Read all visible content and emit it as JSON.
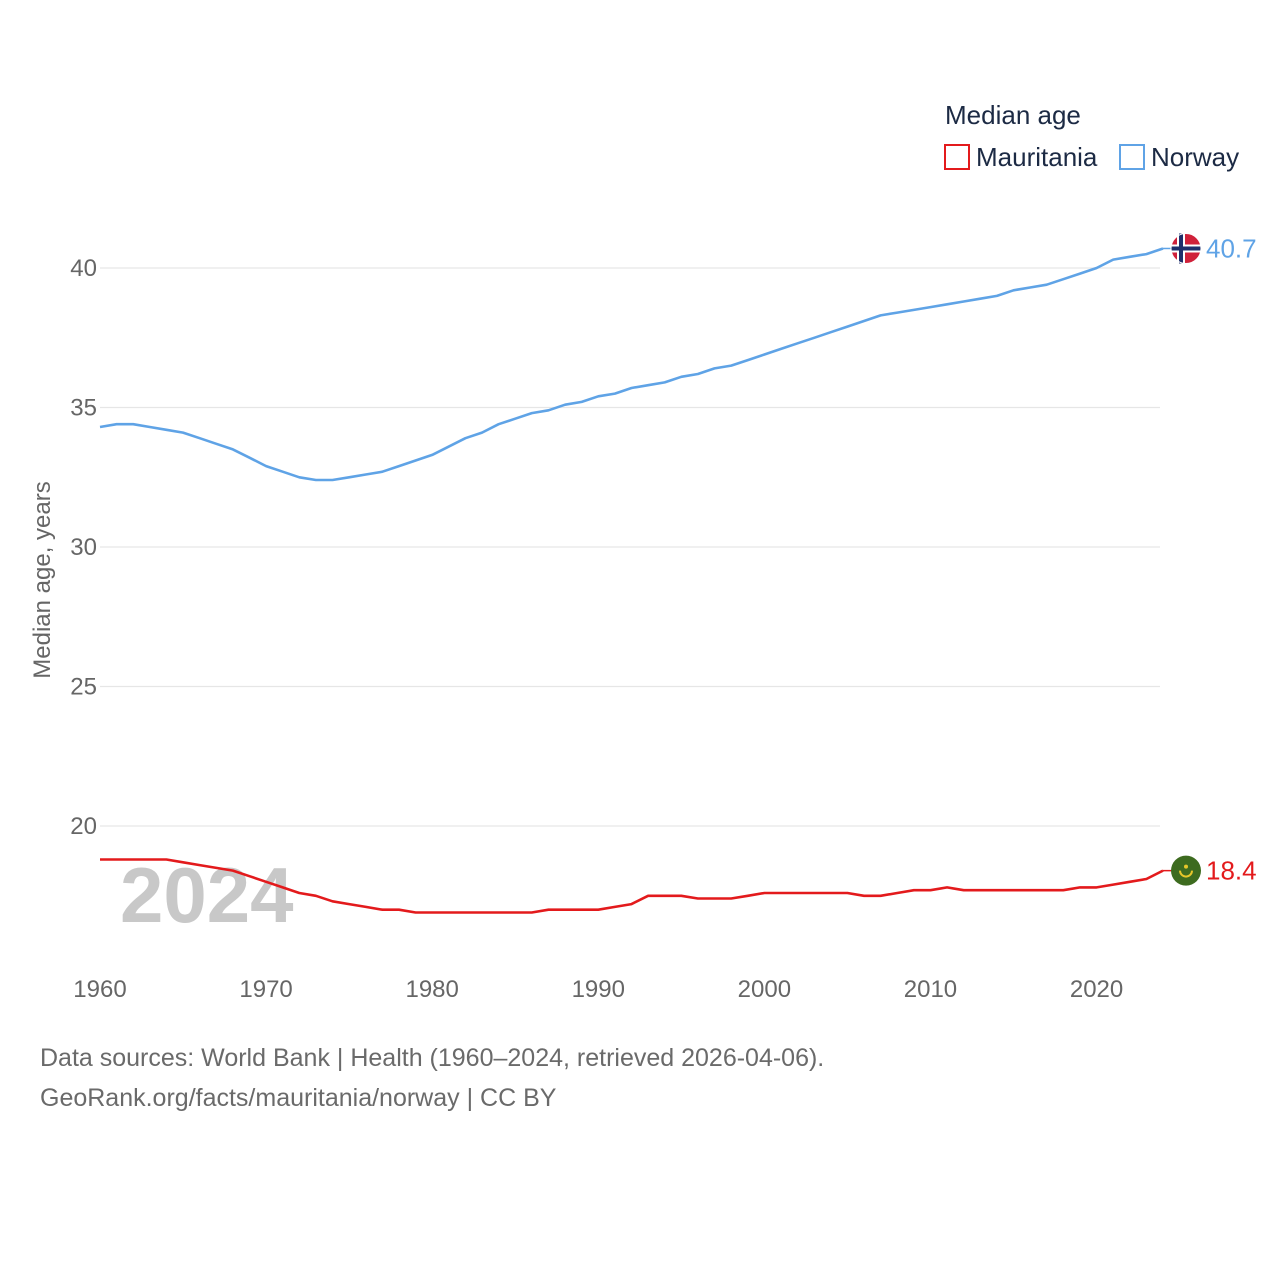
{
  "chart_data": {
    "type": "line",
    "title": "Median age",
    "ylabel": "Median age, years",
    "xlabel": "",
    "xlim": [
      1960,
      2024
    ],
    "ylim": [
      15,
      42
    ],
    "yticks": [
      20,
      25,
      30,
      35,
      40
    ],
    "xticks": [
      1960,
      1970,
      1980,
      1990,
      2000,
      2010,
      2020
    ],
    "grid": true,
    "legend_position": "top-right",
    "current_year": "2024",
    "series": [
      {
        "name": "Mauritania",
        "color": "#e31a1c",
        "flag_icon": "mauritania-flag-icon",
        "end_label": "18.4",
        "x": [
          1960,
          1961,
          1962,
          1963,
          1964,
          1965,
          1966,
          1967,
          1968,
          1969,
          1970,
          1971,
          1972,
          1973,
          1974,
          1975,
          1976,
          1977,
          1978,
          1979,
          1980,
          1981,
          1982,
          1983,
          1984,
          1985,
          1986,
          1987,
          1988,
          1989,
          1990,
          1991,
          1992,
          1993,
          1994,
          1995,
          1996,
          1997,
          1998,
          1999,
          2000,
          2001,
          2002,
          2003,
          2004,
          2005,
          2006,
          2007,
          2008,
          2009,
          2010,
          2011,
          2012,
          2013,
          2014,
          2015,
          2016,
          2017,
          2018,
          2019,
          2020,
          2021,
          2022,
          2023,
          2024
        ],
        "values": [
          18.8,
          18.8,
          18.8,
          18.8,
          18.8,
          18.7,
          18.6,
          18.5,
          18.4,
          18.2,
          18.0,
          17.8,
          17.6,
          17.5,
          17.3,
          17.2,
          17.1,
          17.0,
          17.0,
          16.9,
          16.9,
          16.9,
          16.9,
          16.9,
          16.9,
          16.9,
          16.9,
          17.0,
          17.0,
          17.0,
          17.0,
          17.1,
          17.2,
          17.5,
          17.5,
          17.5,
          17.4,
          17.4,
          17.4,
          17.5,
          17.6,
          17.6,
          17.6,
          17.6,
          17.6,
          17.6,
          17.5,
          17.5,
          17.6,
          17.7,
          17.7,
          17.8,
          17.7,
          17.7,
          17.7,
          17.7,
          17.7,
          17.7,
          17.7,
          17.8,
          17.8,
          17.9,
          18.0,
          18.1,
          18.4
        ]
      },
      {
        "name": "Norway",
        "color": "#5fa3e6",
        "flag_icon": "norway-flag-icon",
        "end_label": "40.7",
        "x": [
          1960,
          1961,
          1962,
          1963,
          1964,
          1965,
          1966,
          1967,
          1968,
          1969,
          1970,
          1971,
          1972,
          1973,
          1974,
          1975,
          1976,
          1977,
          1978,
          1979,
          1980,
          1981,
          1982,
          1983,
          1984,
          1985,
          1986,
          1987,
          1988,
          1989,
          1990,
          1991,
          1992,
          1993,
          1994,
          1995,
          1996,
          1997,
          1998,
          1999,
          2000,
          2001,
          2002,
          2003,
          2004,
          2005,
          2006,
          2007,
          2008,
          2009,
          2010,
          2011,
          2012,
          2013,
          2014,
          2015,
          2016,
          2017,
          2018,
          2019,
          2020,
          2021,
          2022,
          2023,
          2024
        ],
        "values": [
          34.3,
          34.4,
          34.4,
          34.3,
          34.2,
          34.1,
          33.9,
          33.7,
          33.5,
          33.2,
          32.9,
          32.7,
          32.5,
          32.4,
          32.4,
          32.5,
          32.6,
          32.7,
          32.9,
          33.1,
          33.3,
          33.6,
          33.9,
          34.1,
          34.4,
          34.6,
          34.8,
          34.9,
          35.1,
          35.2,
          35.4,
          35.5,
          35.7,
          35.8,
          35.9,
          36.1,
          36.2,
          36.4,
          36.5,
          36.7,
          36.9,
          37.1,
          37.3,
          37.5,
          37.7,
          37.9,
          38.1,
          38.3,
          38.4,
          38.5,
          38.6,
          38.7,
          38.8,
          38.9,
          39.0,
          39.2,
          39.3,
          39.4,
          39.6,
          39.8,
          40.0,
          40.3,
          40.4,
          40.5,
          40.7
        ]
      }
    ]
  },
  "footer": {
    "sources": "Data sources: World Bank | Health (1960–2024, retrieved 2026-04-06).",
    "attribution": "GeoRank.org/facts/mauritania/norway | CC BY"
  }
}
